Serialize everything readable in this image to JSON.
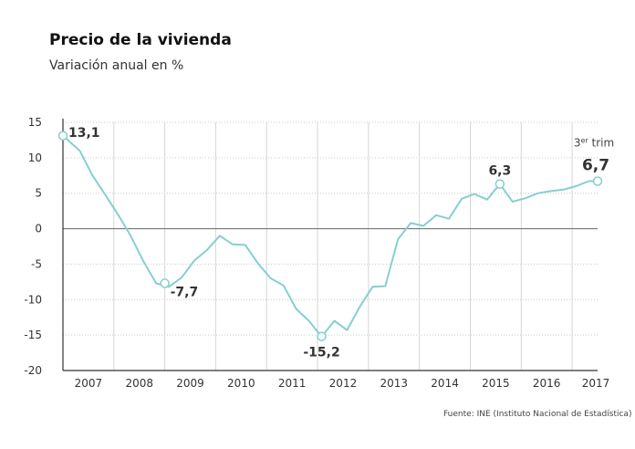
{
  "chart_data": {
    "type": "line",
    "title": "Precio de la vivienda",
    "subtitle": "Variación anual en %",
    "source": "Fuente:  INE (Instituto Nacional de Estadística)",
    "ylim": [
      -20,
      15
    ],
    "yticks": [
      15,
      10,
      5,
      0,
      -5,
      -10,
      -15,
      -20
    ],
    "xlim": [
      2007.0,
      2017.5
    ],
    "year_labels": [
      "2007",
      "2008",
      "2009",
      "2010",
      "2011",
      "2012",
      "2013",
      "2014",
      "2015",
      "2016",
      "2017"
    ],
    "vertical_gridlines_x": [
      2008.0,
      2009.0,
      2010.0,
      2011.0,
      2012.0,
      2013.0,
      2014.0,
      2015.0,
      2016.0,
      2017.0
    ],
    "grid": true,
    "line_color": "#86cfcf",
    "series": [
      {
        "x": [
          2007.0,
          2007.33,
          2007.58,
          2007.83,
          2008.08,
          2008.33,
          2008.58,
          2008.83,
          2009.08,
          2009.33,
          2009.58,
          2009.83,
          2010.08,
          2010.33,
          2010.58,
          2010.83,
          2011.08,
          2011.33,
          2011.58,
          2011.83,
          2012.08,
          2012.33,
          2012.58,
          2012.83,
          2013.08,
          2013.33,
          2013.58,
          2013.83,
          2014.08,
          2014.33,
          2014.58,
          2014.83,
          2015.08,
          2015.33,
          2015.58,
          2015.83,
          2016.08,
          2016.33,
          2016.58,
          2016.83,
          2017.08,
          2017.33,
          2017.5
        ],
        "y": [
          13.1,
          11.0,
          7.5,
          4.8,
          2.0,
          -1.0,
          -4.6,
          -7.7,
          -8.2,
          -6.9,
          -4.5,
          -3.0,
          -1.0,
          -2.2,
          -2.3,
          -4.9,
          -7.0,
          -8.0,
          -11.3,
          -13.0,
          -15.2,
          -13.0,
          -14.3,
          -11.0,
          -8.2,
          -8.1,
          -1.5,
          0.8,
          0.4,
          1.9,
          1.4,
          4.2,
          4.9,
          4.1,
          6.3,
          3.8,
          4.3,
          5.0,
          5.3,
          5.5,
          6.0,
          6.7,
          6.7
        ]
      }
    ],
    "annotations": [
      {
        "label": "13,1",
        "x": 2007.0,
        "y": 13.1
      },
      {
        "label": "-7,7",
        "x": 2009.0,
        "y": -7.7
      },
      {
        "label": "-15,2",
        "x": 2012.08,
        "y": -15.2
      },
      {
        "label": "6,3",
        "x": 2015.58,
        "y": 6.3
      },
      {
        "label": "6,7",
        "x": 2017.5,
        "y": 6.7
      }
    ],
    "note": {
      "base": "3",
      "sup": "er",
      "text": " trim"
    }
  }
}
